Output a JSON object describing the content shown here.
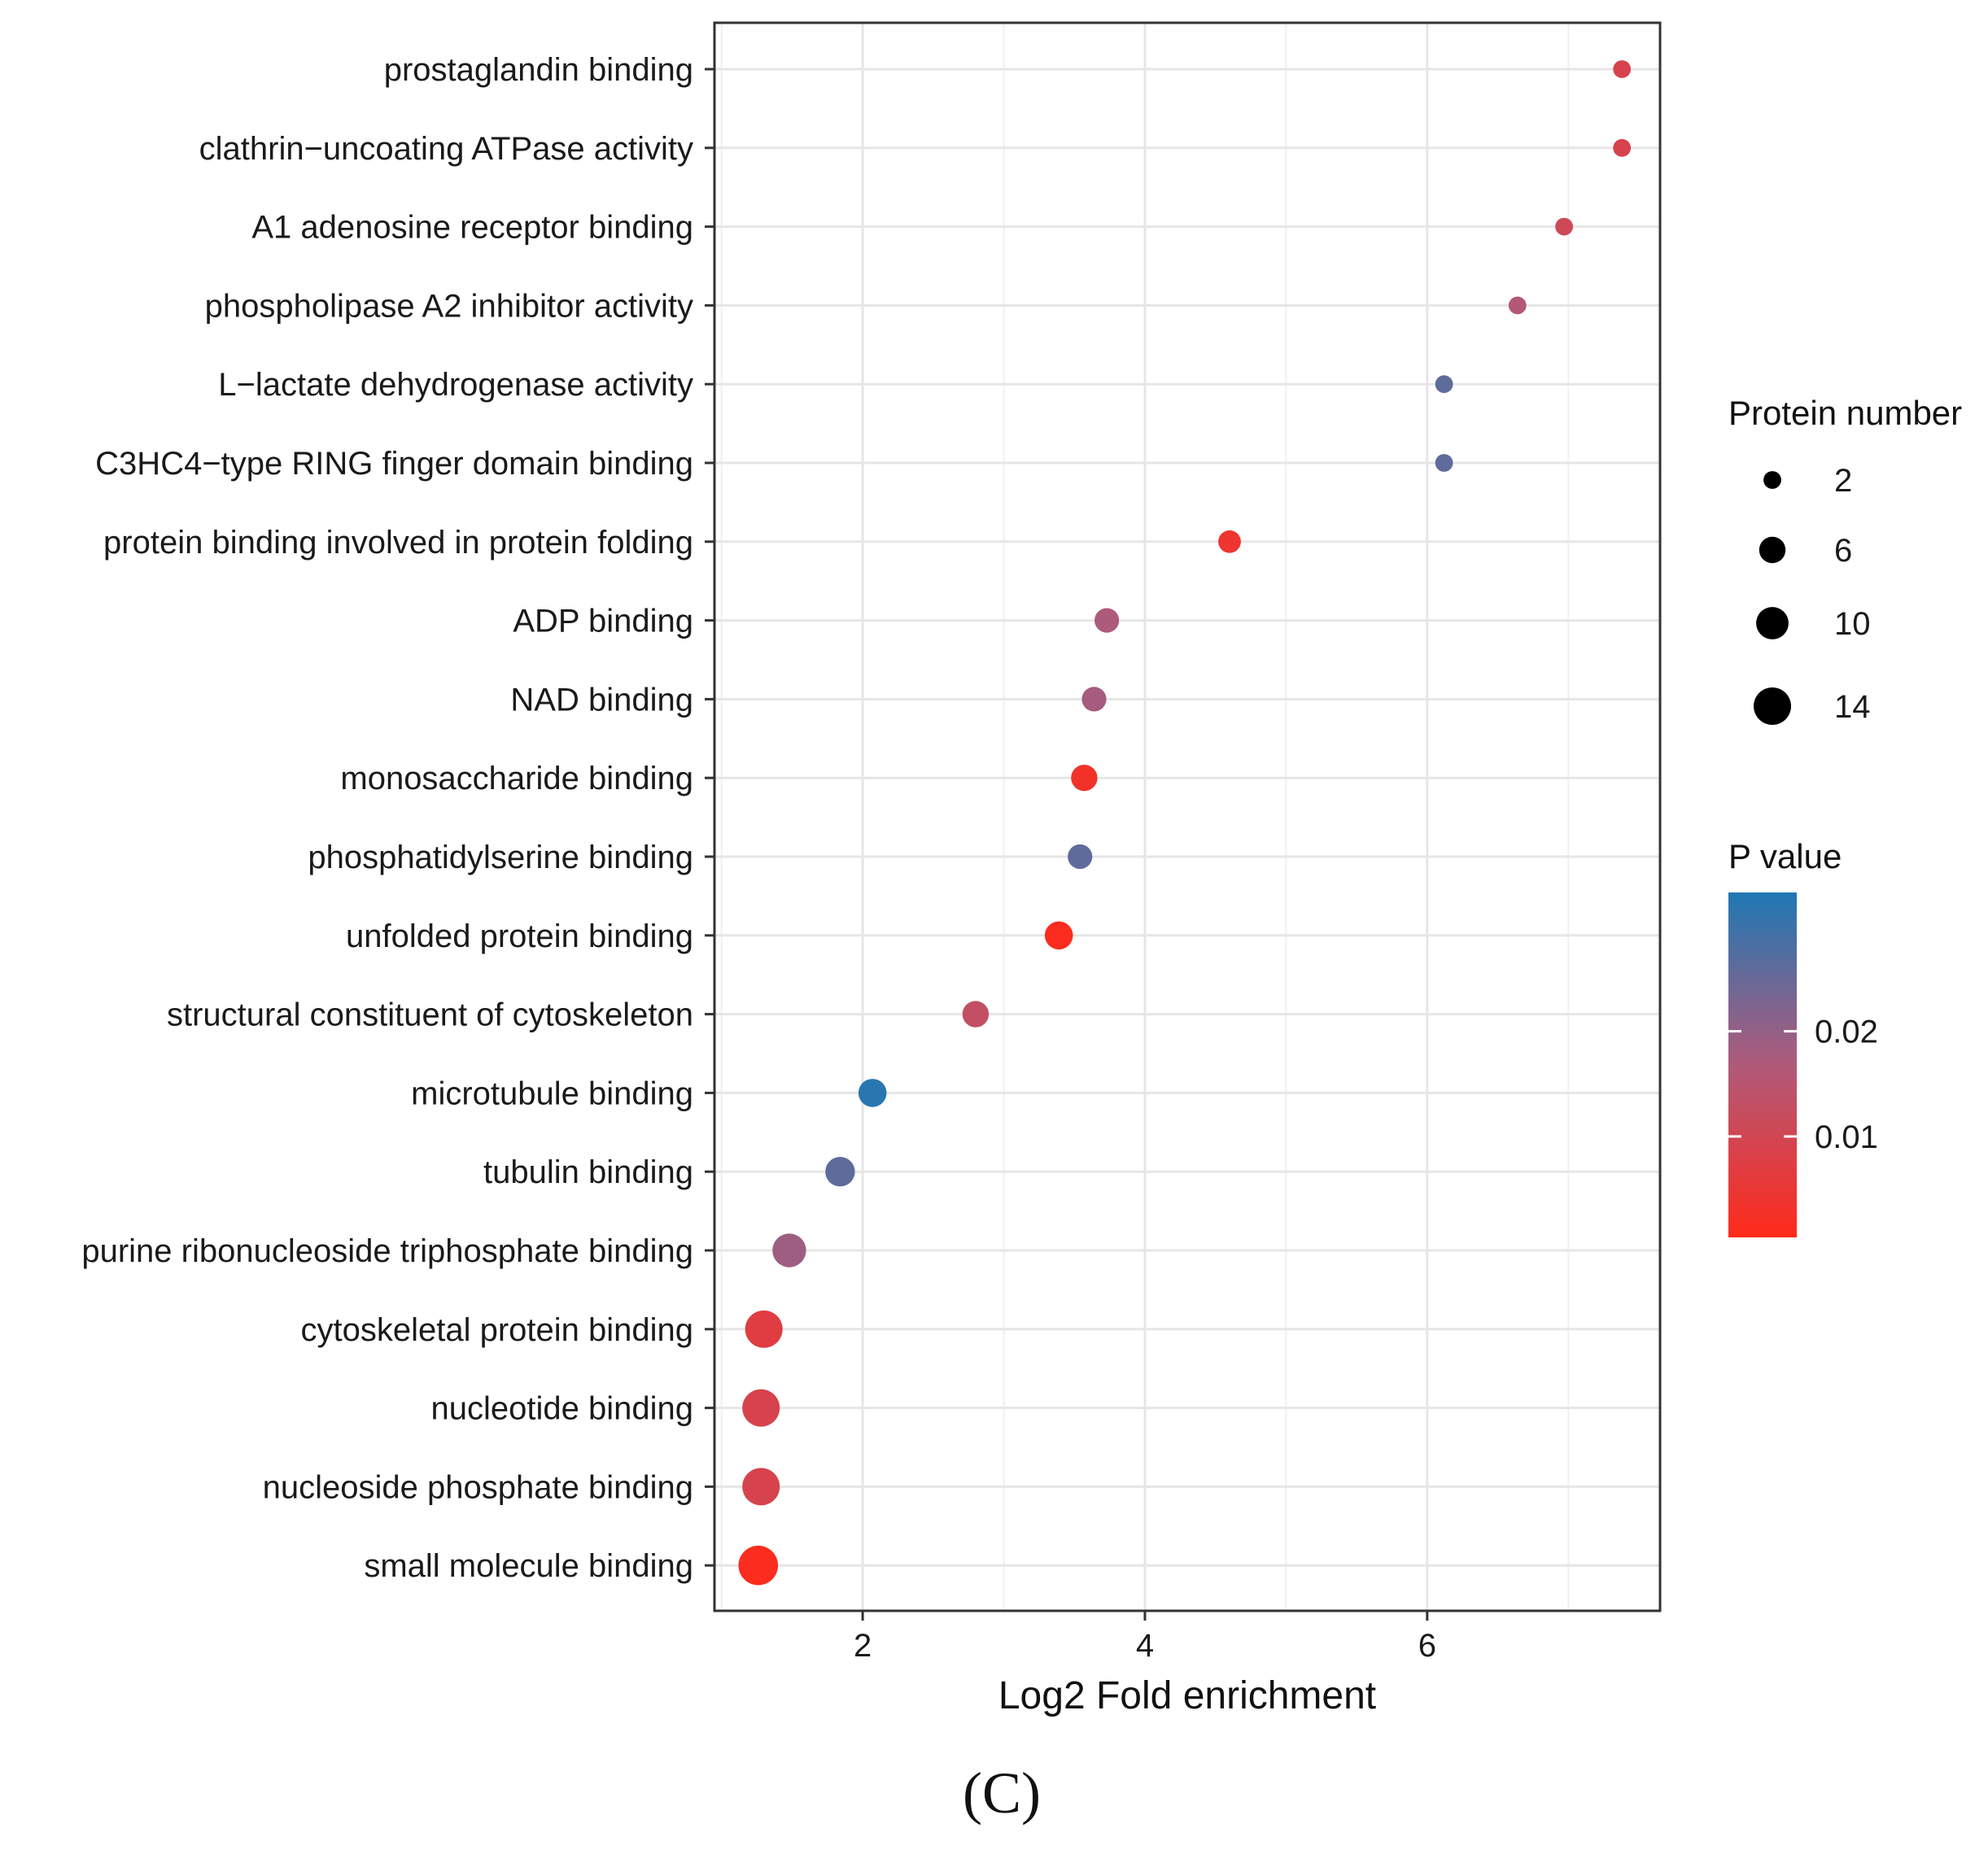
{
  "chart_data": {
    "type": "scatter",
    "xlabel": "Log2 Fold enrichment",
    "xlim": [
      0.95,
      7.65
    ],
    "x_ticks": [
      2,
      4,
      6
    ],
    "categories": [
      "prostaglandin binding",
      "clathrin−uncoating ATPase activity",
      "A1 adenosine receptor binding",
      "phospholipase A2 inhibitor activity",
      "L−lactate dehydrogenase activity",
      "C3HC4−type RING finger domain binding",
      "protein binding involved in protein folding",
      "ADP binding",
      "NAD binding",
      "monosaccharide binding",
      "phosphatidylserine binding",
      "unfolded protein binding",
      "structural constituent of cytoskeleton",
      "microtubule binding",
      "tubulin binding",
      "purine ribonucleoside triphosphate binding",
      "cytoskeletal protein binding",
      "nucleotide binding",
      "nucleoside phosphate binding",
      "small molecule binding"
    ],
    "x": [
      7.38,
      7.38,
      6.97,
      6.64,
      6.12,
      6.12,
      4.6,
      3.73,
      3.64,
      3.57,
      3.54,
      3.39,
      2.8,
      2.07,
      1.84,
      1.48,
      1.3,
      1.28,
      1.28,
      1.26
    ],
    "protein_number": [
      2,
      2,
      2,
      2,
      2,
      2,
      4,
      5,
      5,
      6,
      5,
      7,
      6,
      7,
      8,
      11,
      14,
      14,
      14,
      16
    ],
    "p_value": [
      0.009,
      0.009,
      0.011,
      0.016,
      0.026,
      0.026,
      0.004,
      0.017,
      0.018,
      0.003,
      0.026,
      0.001,
      0.013,
      0.032,
      0.026,
      0.019,
      0.007,
      0.009,
      0.009,
      0.001
    ],
    "size_legend": {
      "title": "Protein number",
      "values": [
        2,
        6,
        10,
        14
      ],
      "labels": [
        "2",
        "6",
        "10",
        "14"
      ]
    },
    "color_legend": {
      "title": "P value",
      "range": [
        0.0004,
        0.0332
      ],
      "ticks": [
        0.02,
        0.01
      ],
      "tick_labels": [
        "0.02",
        "0.01"
      ],
      "low_color": "#ff2a1a",
      "high_color": "#1f78b4",
      "mid_color": "#8c5a8c"
    },
    "grid": true
  },
  "caption": "(C)"
}
